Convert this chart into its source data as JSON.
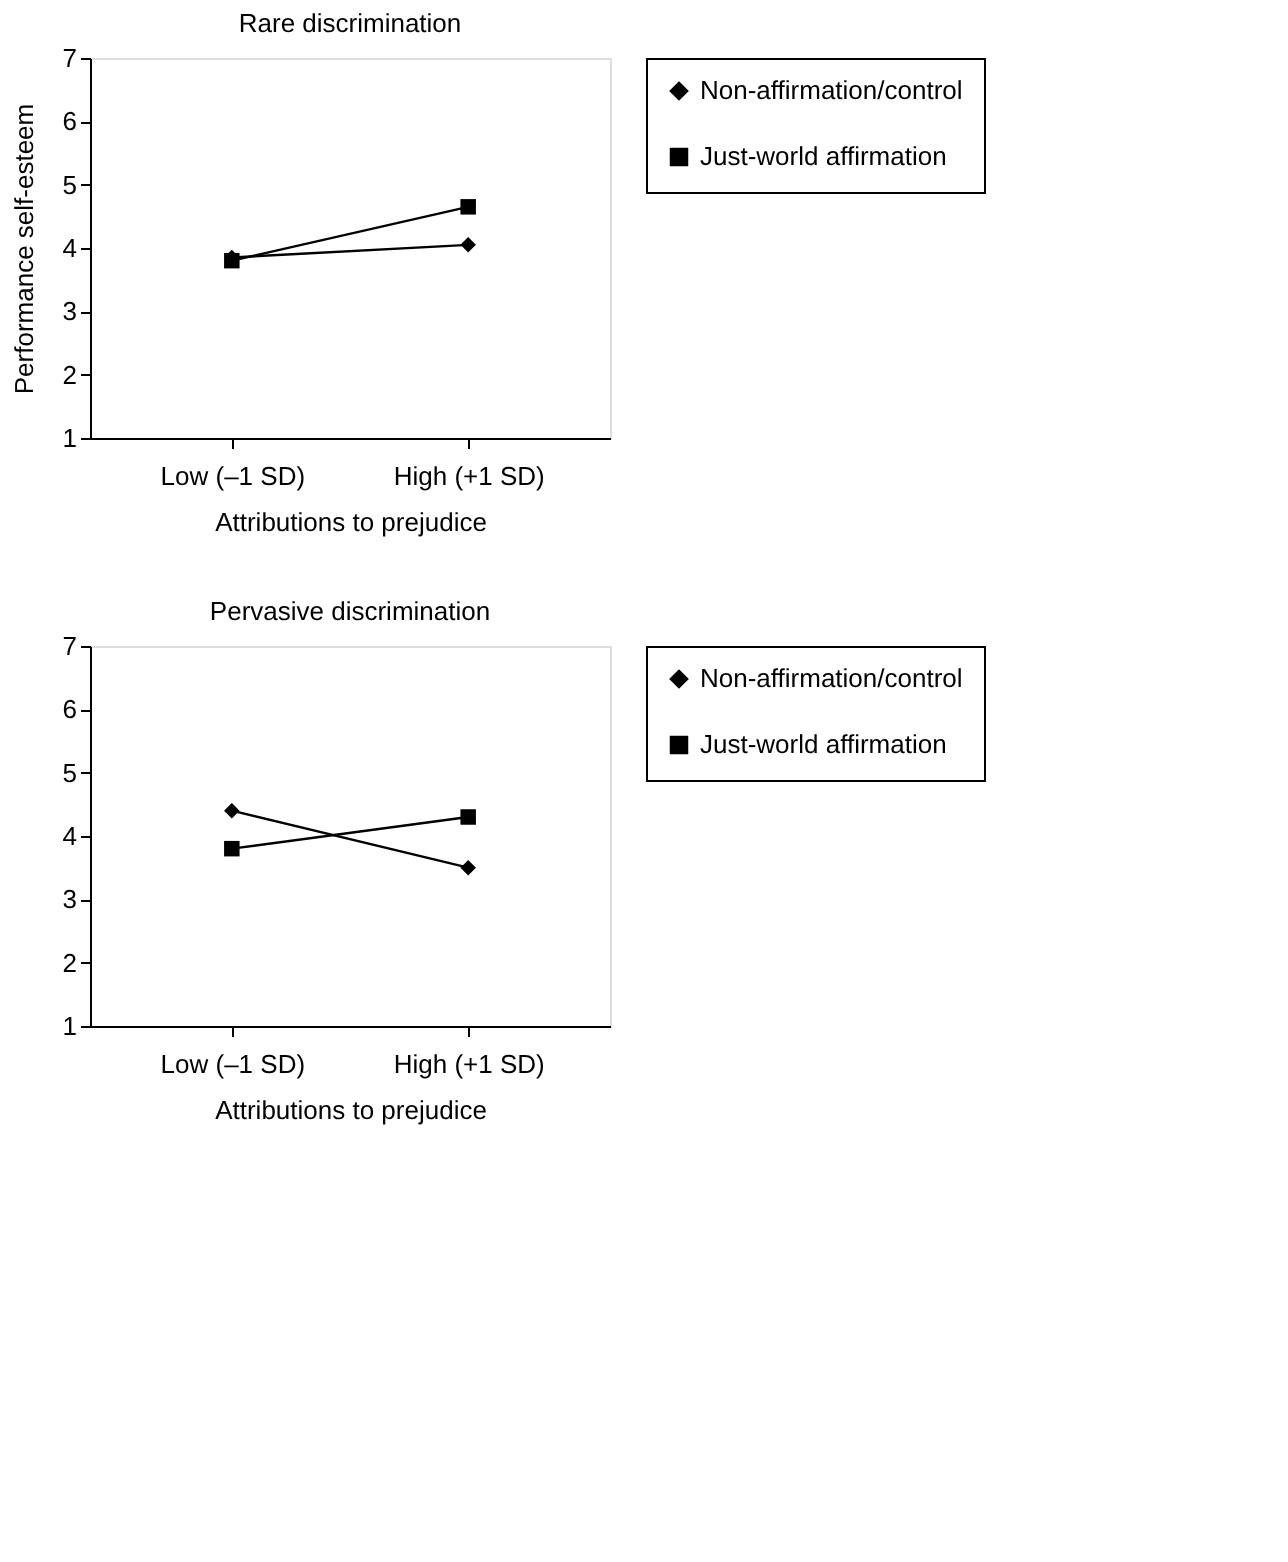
{
  "chart_data": [
    {
      "type": "line",
      "title": "Rare discrimination",
      "xlabel": "Attributions to prejudice",
      "ylabel": "Performance self-esteem",
      "categories": [
        "Low (–1 SD)",
        "High (+1 SD)"
      ],
      "ylim": [
        1,
        7
      ],
      "yticks": [
        1,
        2,
        3,
        4,
        5,
        6,
        7
      ],
      "legend": "right",
      "grid": false,
      "series": [
        {
          "name": "Non-affirmation/control",
          "color": "#000000",
          "marker": "diamond",
          "values": [
            3.85,
            4.05
          ]
        },
        {
          "name": "Just-world affirmation",
          "color": "#000000",
          "marker": "square",
          "values": [
            3.8,
            4.65
          ]
        }
      ]
    },
    {
      "type": "line",
      "title": "Pervasive discrimination",
      "xlabel": "Attributions to prejudice",
      "categories": [
        "Low (–1 SD)",
        "High (+1 SD)"
      ],
      "ylim": [
        1,
        7
      ],
      "yticks": [
        1,
        2,
        3,
        4,
        5,
        6,
        7
      ],
      "legend": "right",
      "grid": false,
      "series": [
        {
          "name": "Non-affirmation/control",
          "color": "#000000",
          "marker": "diamond",
          "values": [
            4.4,
            3.5
          ]
        },
        {
          "name": "Just-world affirmation",
          "color": "#000000",
          "marker": "square",
          "values": [
            3.8,
            4.3
          ]
        }
      ]
    }
  ]
}
